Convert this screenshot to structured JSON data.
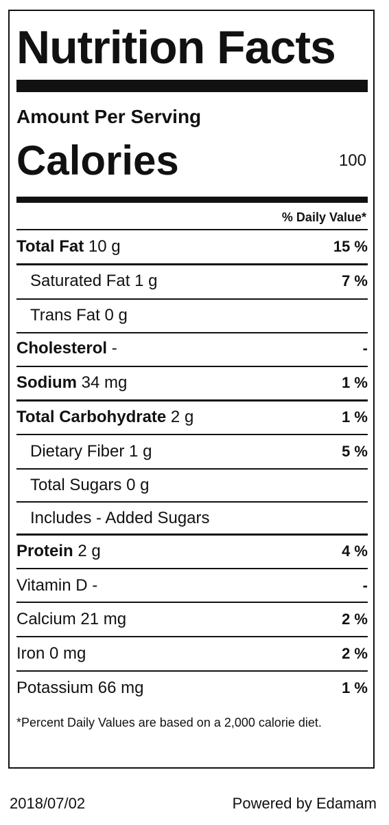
{
  "title": "Nutrition Facts",
  "amount_per_serving": "Amount Per Serving",
  "calories_label": "Calories",
  "calories_value": "100",
  "daily_value_header": "% Daily Value*",
  "rows": [
    {
      "name": "Total Fat",
      "amount": "10 g",
      "dv": "15 %"
    },
    {
      "name": "Saturated Fat",
      "amount": "1 g",
      "dv": "7 %"
    },
    {
      "name": "Trans Fat",
      "amount": "0 g",
      "dv": ""
    },
    {
      "name": "Cholesterol",
      "amount": "-",
      "dv": "-"
    },
    {
      "name": "Sodium",
      "amount": "34 mg",
      "dv": "1 %"
    },
    {
      "name": "Total Carbohydrate",
      "amount": "2 g",
      "dv": "1 %"
    },
    {
      "name": "Dietary Fiber",
      "amount": "1 g",
      "dv": "5 %"
    },
    {
      "name": "Total Sugars",
      "amount": "0 g",
      "dv": ""
    },
    {
      "name": "Includes - Added Sugars",
      "amount": "",
      "dv": ""
    },
    {
      "name": "Protein",
      "amount": "2 g",
      "dv": "4 %"
    },
    {
      "name": "Vitamin D",
      "amount": "-",
      "dv": "-"
    },
    {
      "name": "Calcium",
      "amount": "21 mg",
      "dv": "2 %"
    },
    {
      "name": "Iron",
      "amount": "0 mg",
      "dv": "2 %"
    },
    {
      "name": "Potassium",
      "amount": "66 mg",
      "dv": "1 %"
    }
  ],
  "footnote": "*Percent Daily Values are based on a 2,000 calorie diet.",
  "date": "2018/07/02",
  "powered_by": "Powered by Edamam"
}
